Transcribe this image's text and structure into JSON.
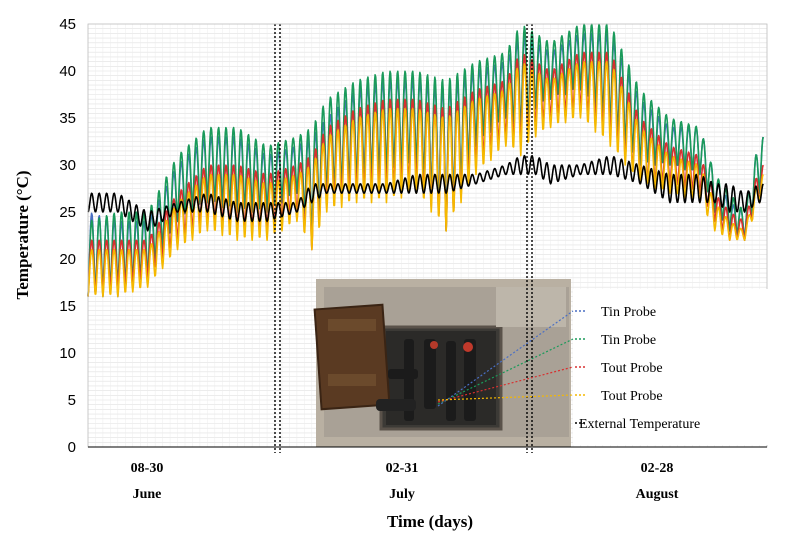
{
  "chart_data": {
    "type": "line",
    "title": "",
    "xlabel": "Time (days)",
    "ylabel": "Temperature (°C)",
    "ylim": [
      0,
      45
    ],
    "yticks": [
      0,
      5,
      10,
      15,
      20,
      25,
      30,
      35,
      40,
      45
    ],
    "x_unit": "days",
    "xlim": [
      0,
      91
    ],
    "grid": true,
    "legend_position": "bottom-right",
    "period_labels": [
      {
        "range": "08-30",
        "month": "June"
      },
      {
        "range": "02-31",
        "month": "July"
      },
      {
        "range": "02-28",
        "month": "August"
      }
    ],
    "period_breaks": [
      0,
      30,
      60,
      91
    ],
    "series": [
      {
        "name": "Tin Probe",
        "color": "#4a6fc4",
        "style": "dashed",
        "x": [
          0,
          4,
          8,
          12,
          16,
          20,
          24,
          28,
          30,
          32,
          36,
          40,
          44,
          48,
          52,
          56,
          58,
          60,
          62,
          66,
          70,
          74,
          78,
          82,
          84,
          86,
          88,
          90
        ],
        "min": [
          16,
          16,
          18,
          24,
          26,
          25,
          25,
          27,
          22,
          27,
          28,
          29,
          30,
          24,
          32,
          35,
          33,
          36,
          37,
          38,
          34,
          30,
          30,
          29,
          25,
          23,
          22,
          27
        ],
        "max": [
          25,
          24,
          24,
          30,
          33,
          33,
          31,
          32,
          33,
          35,
          38,
          39,
          39,
          38,
          40,
          41,
          44,
          43,
          42,
          44,
          44,
          37,
          34,
          34,
          29,
          26,
          25,
          33
        ]
      },
      {
        "name": "Tin Probe",
        "color": "#1a9a5a",
        "style": "dashed",
        "x": [
          0,
          4,
          8,
          12,
          16,
          20,
          24,
          28,
          30,
          32,
          36,
          40,
          44,
          48,
          52,
          56,
          58,
          60,
          62,
          66,
          70,
          74,
          78,
          82,
          84,
          86,
          88,
          90
        ],
        "min": [
          16,
          17,
          18,
          24,
          26,
          25,
          25,
          27,
          22,
          27,
          28,
          29,
          30,
          23,
          32,
          35,
          33,
          36,
          37,
          38,
          34,
          30,
          30,
          29,
          25,
          23,
          22,
          27
        ],
        "max": [
          24,
          25,
          25,
          31,
          34,
          34,
          32,
          33,
          34,
          37,
          39,
          40,
          40,
          39,
          41,
          42,
          45,
          44,
          43,
          45,
          45,
          38,
          35,
          34,
          29,
          27,
          25,
          33
        ]
      },
      {
        "name": "Tout Probe",
        "color": "#d83030",
        "style": "dashed",
        "x": [
          0,
          4,
          8,
          12,
          16,
          20,
          24,
          28,
          30,
          32,
          36,
          40,
          44,
          48,
          52,
          56,
          58,
          60,
          62,
          66,
          70,
          74,
          78,
          82,
          84,
          86,
          88,
          90
        ],
        "min": [
          16,
          17,
          18,
          22,
          24,
          23,
          23,
          25,
          21,
          26,
          27,
          27,
          28,
          23,
          30,
          33,
          32,
          34,
          35,
          36,
          33,
          28,
          28,
          27,
          24,
          22,
          22,
          26
        ],
        "max": [
          22,
          22,
          22,
          27,
          30,
          30,
          29,
          30,
          31,
          34,
          36,
          37,
          37,
          36,
          38,
          39,
          42,
          41,
          40,
          42,
          42,
          35,
          32,
          31,
          27,
          25,
          24,
          30
        ]
      },
      {
        "name": "Tout Probe",
        "color": "#f5b800",
        "style": "dashed",
        "x": [
          0,
          4,
          8,
          12,
          16,
          20,
          24,
          28,
          30,
          32,
          36,
          40,
          44,
          48,
          52,
          56,
          58,
          60,
          62,
          66,
          70,
          74,
          78,
          82,
          84,
          86,
          88,
          90
        ],
        "min": [
          16,
          16,
          17,
          21,
          23,
          22,
          22,
          24,
          21,
          25,
          26,
          26,
          27,
          23,
          29,
          32,
          31,
          33,
          34,
          35,
          32,
          28,
          27,
          26,
          23,
          22,
          22,
          26
        ],
        "max": [
          21,
          21,
          21,
          26,
          29,
          29,
          28,
          29,
          30,
          33,
          35,
          36,
          36,
          35,
          37,
          38,
          41,
          40,
          39,
          41,
          41,
          34,
          31,
          30,
          26,
          24,
          23,
          29
        ]
      },
      {
        "name": "External Temperature",
        "color": "#000000",
        "style": "dashed",
        "x": [
          0,
          4,
          8,
          12,
          16,
          20,
          24,
          28,
          30,
          32,
          36,
          40,
          44,
          48,
          52,
          56,
          58,
          60,
          62,
          66,
          70,
          74,
          78,
          82,
          84,
          86,
          88,
          90
        ],
        "min": [
          25,
          25,
          23,
          25,
          25,
          24,
          24,
          25,
          26,
          27,
          27,
          27,
          27,
          27,
          28,
          29,
          29,
          29,
          28,
          29,
          29,
          28,
          26,
          26,
          26,
          25,
          25,
          26
        ],
        "max": [
          27,
          27,
          25,
          26,
          27,
          26,
          26,
          26,
          28,
          28,
          28,
          28,
          29,
          29,
          29,
          30,
          31,
          31,
          30,
          30,
          31,
          30,
          29,
          29,
          28,
          28,
          27,
          28
        ]
      }
    ],
    "inset_photo": {
      "description_for_render": "photo of probe box with pipes",
      "background": "#b9b0a2"
    }
  }
}
